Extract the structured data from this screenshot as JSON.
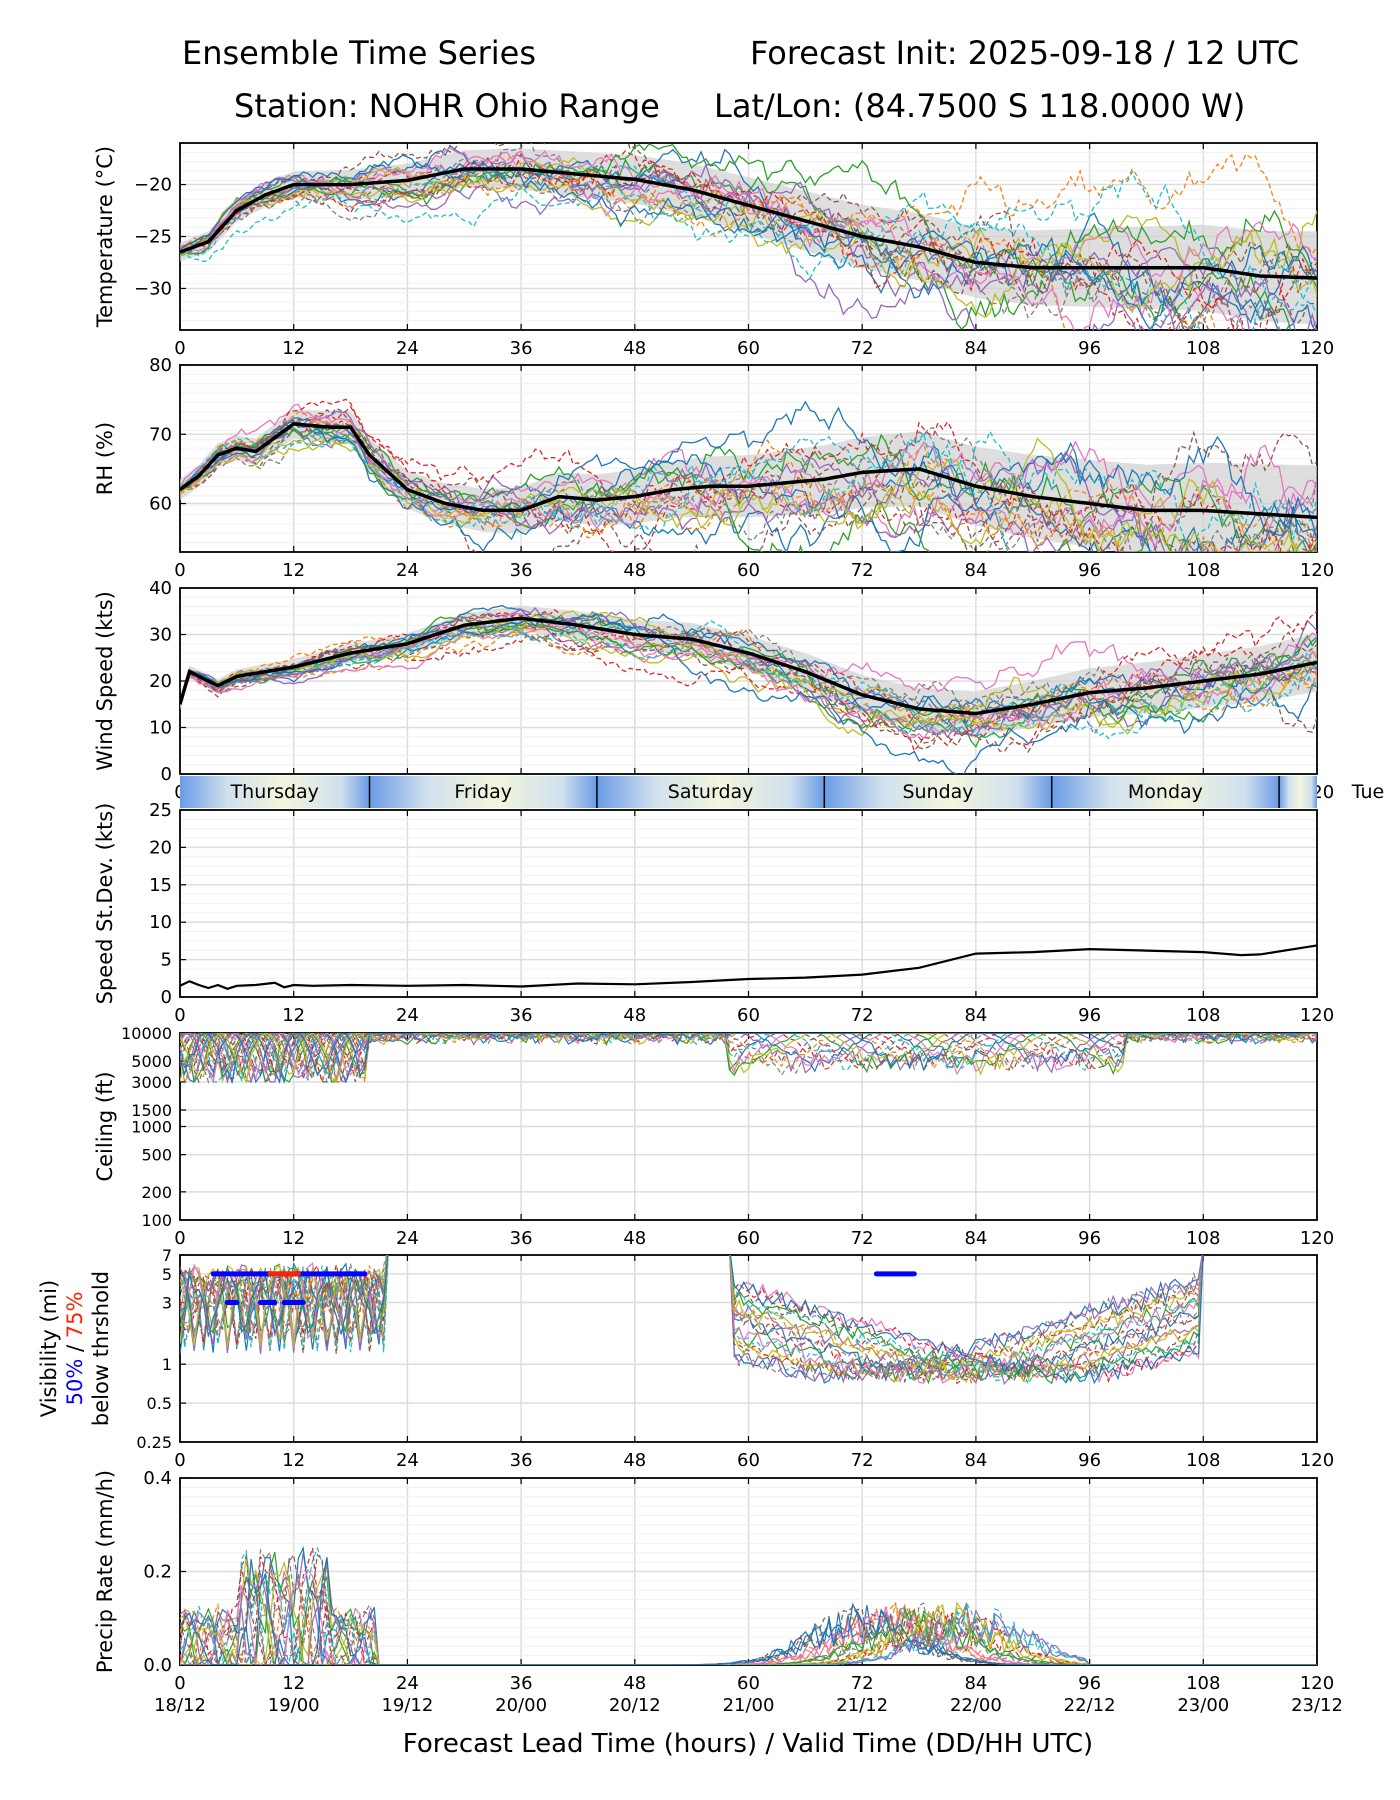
{
  "header": {
    "title_left": "Ensemble Time Series",
    "title_right": "Forecast Init: 2025-09-18 / 12 UTC",
    "station": "Station: NOHR Ohio Range",
    "latlon": "Lat/Lon: (84.7500 S 118.0000 W)"
  },
  "xaxis": {
    "ticks": [
      0,
      12,
      24,
      36,
      48,
      60,
      72,
      84,
      96,
      108,
      120
    ],
    "valid_labels": [
      "18/12",
      "19/00",
      "19/12",
      "20/00",
      "20/12",
      "21/00",
      "21/12",
      "22/00",
      "22/12",
      "23/00",
      "23/12"
    ],
    "xlabel": "Forecast Lead Time (hours) / Valid Time (DD/HH UTC)"
  },
  "day_band": {
    "days": [
      {
        "label": "Thursday",
        "start": 0,
        "end": 20
      },
      {
        "label": "Friday",
        "start": 20,
        "end": 44
      },
      {
        "label": "Saturday",
        "start": 44,
        "end": 68
      },
      {
        "label": "Sunday",
        "start": 68,
        "end": 92
      },
      {
        "label": "Monday",
        "start": 92,
        "end": 116
      },
      {
        "label": "Tue",
        "start": 116,
        "end": 120
      }
    ]
  },
  "chart_data": [
    {
      "type": "line",
      "id": "temp",
      "ylabel": "Temperature (°C)",
      "ylim": [
        -34,
        -16
      ],
      "yticks": [
        -30,
        -25,
        -20
      ],
      "members": 21,
      "spread": 1.8,
      "mean": {
        "x": [
          0,
          3,
          6,
          9,
          12,
          18,
          24,
          30,
          36,
          42,
          48,
          54,
          60,
          66,
          72,
          78,
          84,
          90,
          96,
          102,
          108,
          114,
          120
        ],
        "y": [
          -26.5,
          -25.5,
          -22.5,
          -21.0,
          -20.0,
          -20.0,
          -19.6,
          -18.5,
          -18.5,
          -19.0,
          -19.5,
          -20.5,
          -22.0,
          -23.5,
          -25.0,
          -26.0,
          -27.5,
          -28.0,
          -28.0,
          -28.0,
          -28.0,
          -28.8,
          -29.0
        ]
      }
    },
    {
      "type": "line",
      "id": "rh",
      "ylabel": "RH (%)",
      "ylim": [
        53,
        80
      ],
      "yticks": [
        60,
        70,
        80
      ],
      "members": 21,
      "spread": 3.0,
      "mean": {
        "x": [
          0,
          2,
          4,
          6,
          8,
          10,
          12,
          16,
          18,
          20,
          24,
          28,
          32,
          36,
          40,
          44,
          48,
          52,
          56,
          60,
          64,
          68,
          72,
          78,
          84,
          90,
          96,
          102,
          108,
          114,
          120
        ],
        "y": [
          62,
          64,
          67,
          68,
          67.5,
          69.5,
          71.5,
          71,
          71,
          67,
          62,
          60,
          59,
          59,
          61,
          60.5,
          61,
          62,
          62.5,
          62.5,
          63,
          63.5,
          64.5,
          65,
          62.5,
          61,
          60,
          59,
          59,
          58.5,
          58
        ]
      }
    },
    {
      "type": "line",
      "id": "wind",
      "ylabel": "Wind Speed (kts)",
      "ylim": [
        0,
        40
      ],
      "yticks": [
        0,
        10,
        20,
        30,
        40
      ],
      "members": 21,
      "spread": 2.5,
      "mean": {
        "x": [
          0,
          1,
          3,
          4,
          6,
          9,
          12,
          18,
          24,
          30,
          36,
          42,
          48,
          54,
          60,
          66,
          72,
          78,
          84,
          90,
          96,
          102,
          108,
          114,
          120
        ],
        "y": [
          15,
          22,
          20,
          19,
          21,
          22,
          23,
          26,
          28,
          32,
          33.5,
          32,
          30,
          29,
          26,
          22,
          17,
          14,
          13,
          15,
          17.5,
          18.5,
          20,
          21.5,
          24
        ]
      }
    },
    {
      "type": "line",
      "id": "sd",
      "ylabel": "Speed St.Dev. (kts)",
      "ylim": [
        0,
        25
      ],
      "yticks": [
        0,
        5,
        10,
        15,
        20,
        25
      ],
      "series": [
        {
          "name": "Speed St.Dev.",
          "x": [
            0,
            1,
            2,
            3,
            4,
            5,
            6,
            8,
            10,
            11,
            12,
            14,
            18,
            24,
            30,
            36,
            42,
            48,
            54,
            60,
            66,
            72,
            78,
            84,
            90,
            96,
            102,
            108,
            112,
            114,
            120
          ],
          "y": [
            1.5,
            2.1,
            1.6,
            1.2,
            1.6,
            1.1,
            1.5,
            1.6,
            1.9,
            1.3,
            1.6,
            1.5,
            1.6,
            1.5,
            1.6,
            1.4,
            1.8,
            1.7,
            2.0,
            2.4,
            2.6,
            3.0,
            3.9,
            5.8,
            6.0,
            6.4,
            6.2,
            6.0,
            5.6,
            5.7,
            6.9
          ]
        }
      ]
    },
    {
      "type": "line",
      "id": "ceil",
      "ylabel": "Ceiling (ft)",
      "scale": "log",
      "ylim": [
        100,
        10000
      ],
      "yticks": [
        100,
        200,
        500,
        1000,
        1500,
        3000,
        5000,
        10000
      ],
      "members": 21
    },
    {
      "type": "line",
      "id": "vis",
      "ylabel": "Visibility (mi)",
      "ylabel_50": "50%",
      "ylabel_sep": " / ",
      "ylabel_75": "75%",
      "ylabel2": "below thrshold",
      "scale": "log",
      "ylim": [
        0.25,
        7
      ],
      "yticks": [
        0.25,
        0.5,
        1,
        3,
        5,
        7
      ],
      "members": 21,
      "threshold_bars": [
        {
          "level": 5,
          "start": 3.5,
          "end": 19.5,
          "color": "#0000ff"
        },
        {
          "level": 5,
          "start": 9.5,
          "end": 12.5,
          "color": "#ff2200"
        },
        {
          "level": 3,
          "start": 5,
          "end": 6,
          "color": "#0000ff"
        },
        {
          "level": 3,
          "start": 8.5,
          "end": 10,
          "color": "#0000ff"
        },
        {
          "level": 3,
          "start": 11,
          "end": 13,
          "color": "#0000ff"
        },
        {
          "level": 5,
          "start": 73.5,
          "end": 77.5,
          "color": "#0000ff"
        }
      ]
    },
    {
      "type": "line",
      "id": "precip",
      "ylabel": "Precip Rate (mm/h)",
      "ylim": [
        0,
        0.4
      ],
      "yticks": [
        0.0,
        0.2,
        0.4
      ],
      "members": 21
    }
  ],
  "colors": {
    "members": [
      "#1f77b4",
      "#ff7f0e",
      "#2ca02c",
      "#d62728",
      "#9467bd",
      "#8c564b",
      "#e377c2",
      "#7f7f7f",
      "#bcbd22",
      "#17becf"
    ],
    "mean": "#000000",
    "spread": "#d0d0d0",
    "day_light": "#f4f6dc",
    "day_dark": "#6a9be6"
  }
}
